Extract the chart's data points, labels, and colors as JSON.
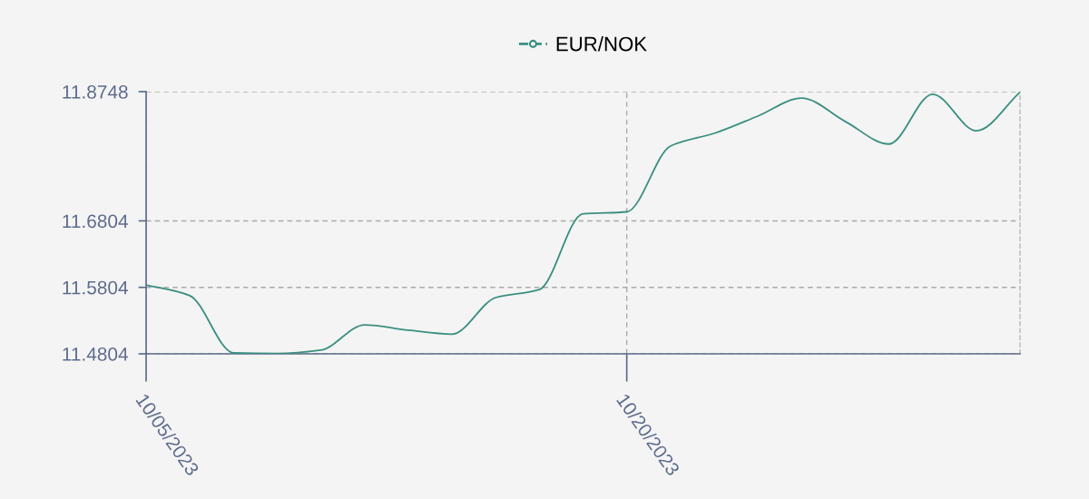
{
  "chart_data": {
    "type": "line",
    "categories": [
      "10/05/2023",
      null,
      null,
      null,
      null,
      null,
      null,
      null,
      null,
      null,
      null,
      "10/20/2023",
      null,
      null,
      null,
      null,
      null,
      null,
      null,
      null,
      null
    ],
    "series": [
      {
        "name": "EUR/NOK",
        "color": "#3a8f80",
        "values": [
          11.584,
          11.568,
          11.482,
          11.481,
          11.486,
          11.524,
          11.516,
          11.51,
          11.565,
          11.577,
          11.691,
          11.694,
          11.793,
          11.812,
          11.838,
          11.865,
          11.83,
          11.796,
          11.871,
          11.816,
          11.874
        ]
      }
    ],
    "ylim": [
      11.4804,
      11.8748
    ],
    "yticks": [
      11.4804,
      11.5804,
      11.6804,
      11.8748
    ],
    "grid": true,
    "legend": "top",
    "marker": "none",
    "line_style": "solid"
  }
}
